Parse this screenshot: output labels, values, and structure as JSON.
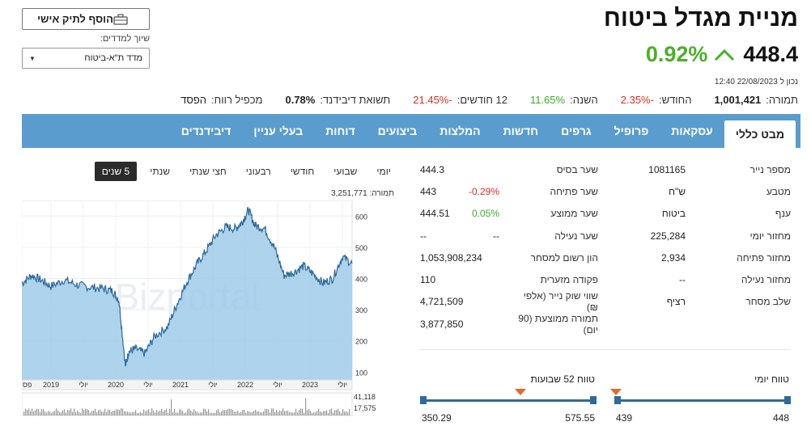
{
  "header": {
    "title": "מניית מגדל ביטוח",
    "price": "448.4",
    "change": "0.92%",
    "updated": "נכון ל 22/08/2023 12:40"
  },
  "stats": [
    {
      "label": "תמורה:",
      "value": "1,001,421",
      "tone": "bold"
    },
    {
      "label": "החודש:",
      "value": "-2.35%",
      "tone": "neg"
    },
    {
      "label": "השנה:",
      "value": "11.65%",
      "tone": "pos"
    },
    {
      "label": "12 חודשים:",
      "value": "-21.45%",
      "tone": "neg"
    },
    {
      "label": "תשואת דיבידנד:",
      "value": "0.78%",
      "tone": "bold"
    },
    {
      "label": "מכפיל רווח:",
      "value": "הפסד",
      "tone": "plain"
    }
  ],
  "actions": {
    "add_portfolio": "הוסף לתיק אישי",
    "index_label": "שיוך למדדים:",
    "index_selected": "מדד ת\"א-ביטוח"
  },
  "tabs": [
    "מבט כללי",
    "עסקאות",
    "פרופיל",
    "גרפים",
    "חדשות",
    "המלצות",
    "ביצועים",
    "דוחות",
    "בעלי עניין",
    "דיבידנדים"
  ],
  "chart": {
    "periods": [
      "יומי",
      "שבועי",
      "חודשי",
      "רבעוני",
      "חצי שנתי",
      "שנתי",
      "5 שנים"
    ],
    "active_period": "5 שנים",
    "volume_label": "תמורה: 3,251,771",
    "watermark": "Bizportal"
  },
  "chart_data": {
    "type": "area",
    "y_ticks": [
      "600",
      "500",
      "400",
      "300",
      "200",
      "100"
    ],
    "ylim": [
      75,
      650
    ],
    "x_labels": [
      "פס",
      "2019",
      "יולי",
      "2020",
      "יולי",
      "2021",
      "יולי",
      "2022",
      "יולי",
      "2023",
      "יולי"
    ],
    "x_positions": [
      2018.55,
      2019.0,
      2019.5,
      2020.0,
      2020.5,
      2021.0,
      2021.5,
      2022.0,
      2022.5,
      2023.0,
      2023.5
    ],
    "x_range": [
      2018.55,
      2023.65
    ],
    "series": [
      {
        "x": [
          2018.55,
          2018.7,
          2018.85,
          2019.0,
          2019.2,
          2019.4,
          2019.6,
          2019.8,
          2019.95,
          2020.05,
          2020.15,
          2020.2,
          2020.3,
          2020.45,
          2020.6,
          2020.8,
          2020.95,
          2021.1,
          2021.25,
          2021.4,
          2021.55,
          2021.7,
          2021.85,
          2021.95,
          2022.05,
          2022.15,
          2022.3,
          2022.45,
          2022.6,
          2022.75,
          2022.9,
          2023.05,
          2023.2,
          2023.35,
          2023.5,
          2023.65
        ],
        "values": [
          385,
          410,
          395,
          375,
          395,
          380,
          372,
          368,
          360,
          330,
          120,
          165,
          175,
          160,
          215,
          245,
          320,
          390,
          445,
          490,
          540,
          565,
          560,
          580,
          620,
          570,
          560,
          500,
          410,
          420,
          440,
          415,
          385,
          400,
          470,
          448
        ]
      }
    ],
    "volume_ticks": [
      "41,118",
      "17,575"
    ],
    "grid": true
  },
  "info_right": [
    {
      "label": "מספר נייר",
      "value": "1081165"
    },
    {
      "label": "מטבע",
      "value": "ש\"ח"
    },
    {
      "label": "ענף",
      "value": "ביטוח"
    },
    {
      "label": "מחזור יומי",
      "value": "225,284"
    },
    {
      "label": "מחזור פתיחה",
      "value": "2,934"
    },
    {
      "label": "מחזור נעילה",
      "value": "--"
    },
    {
      "label": "שלב מסחר",
      "value": "רציף"
    }
  ],
  "info_left": [
    {
      "label": "שער בסיס",
      "value": "444.3",
      "change": "",
      "tone": ""
    },
    {
      "label": "שער פתיחה",
      "value": "443",
      "change": "-0.29%",
      "tone": "neg"
    },
    {
      "label": "שער ממוצע",
      "value": "444.51",
      "change": "0.05%",
      "tone": "pos"
    },
    {
      "label": "שער נעילה",
      "value": "--",
      "change": "--",
      "tone": ""
    },
    {
      "label": "הון רשום למסחר",
      "value": "1,053,908,234",
      "change": "",
      "tone": ""
    },
    {
      "label": "פקודה מזערית",
      "value": "110",
      "change": "",
      "tone": ""
    },
    {
      "label": "שווי שוק נייר (אלפי ₪)",
      "value": "4,721,509",
      "change": "",
      "tone": ""
    },
    {
      "label": "תמורה ממוצעת (90 יום)",
      "value": "3,877,850",
      "change": "",
      "tone": ""
    }
  ],
  "ranges": {
    "daily": {
      "title": "טווח יומי",
      "min": "439",
      "max": "448",
      "marker": 1.0
    },
    "weekly52": {
      "title": "טווח 52 שבועות",
      "min": "350.29",
      "max": "575.55",
      "marker": 0.43
    }
  },
  "colors": {
    "accent": "#5a9ccd",
    "positive": "#4caf2a",
    "negative": "#d93025",
    "marker": "#e8652b",
    "range": "#2f6a99"
  }
}
